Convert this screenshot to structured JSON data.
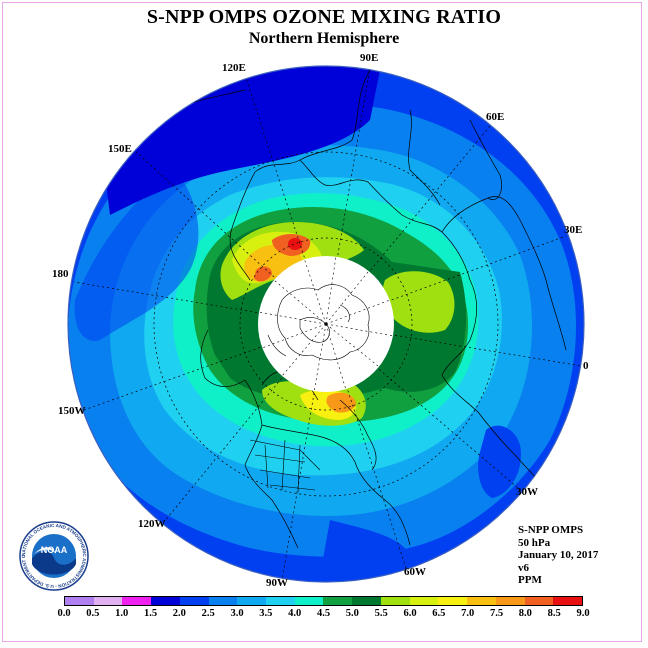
{
  "title": "S-NPP OMPS OZONE MIXING RATIO",
  "subtitle": "Northern Hemisphere",
  "longitude_labels": {
    "l90e": "90E",
    "l60e": "60E",
    "l30e": "30E",
    "l0": "0",
    "l30w": "30W",
    "l60w": "60W",
    "l90w": "90W",
    "l120w": "120W",
    "l150w": "150W",
    "l180": "180",
    "l150e": "150E",
    "l120e": "120E"
  },
  "info": {
    "instrument": "S-NPP OMPS",
    "level": "50 hPa",
    "date": "January 10, 2017",
    "version": "v6",
    "units": "PPM"
  },
  "logo": {
    "name": "NOAA",
    "ring_text": "NATIONAL OCEANIC AND ATMOSPHERIC ADMINISTRATION - U.S. DEPARTMENT OF COMMERCE"
  },
  "colorbar": {
    "ticks": [
      "0.0",
      "0.5",
      "1.0",
      "1.5",
      "2.0",
      "2.5",
      "3.0",
      "3.5",
      "4.0",
      "4.5",
      "5.0",
      "5.5",
      "6.0",
      "6.5",
      "7.0",
      "7.5",
      "8.0",
      "8.5",
      "9.0"
    ],
    "colors": [
      "#b080f0",
      "#e0b0f0",
      "#f020f0",
      "#0000d8",
      "#0040f0",
      "#0880f0",
      "#10a8f0",
      "#20d0f0",
      "#10f0c8",
      "#10a040",
      "#007830",
      "#a0e010",
      "#d8f010",
      "#f8f010",
      "#f8c010",
      "#f89818",
      "#f06020",
      "#e81010",
      "#8a5030"
    ]
  },
  "colors": {
    "background": "#ffffff",
    "pole_mask": "#ffffff",
    "coast": "#000000"
  }
}
